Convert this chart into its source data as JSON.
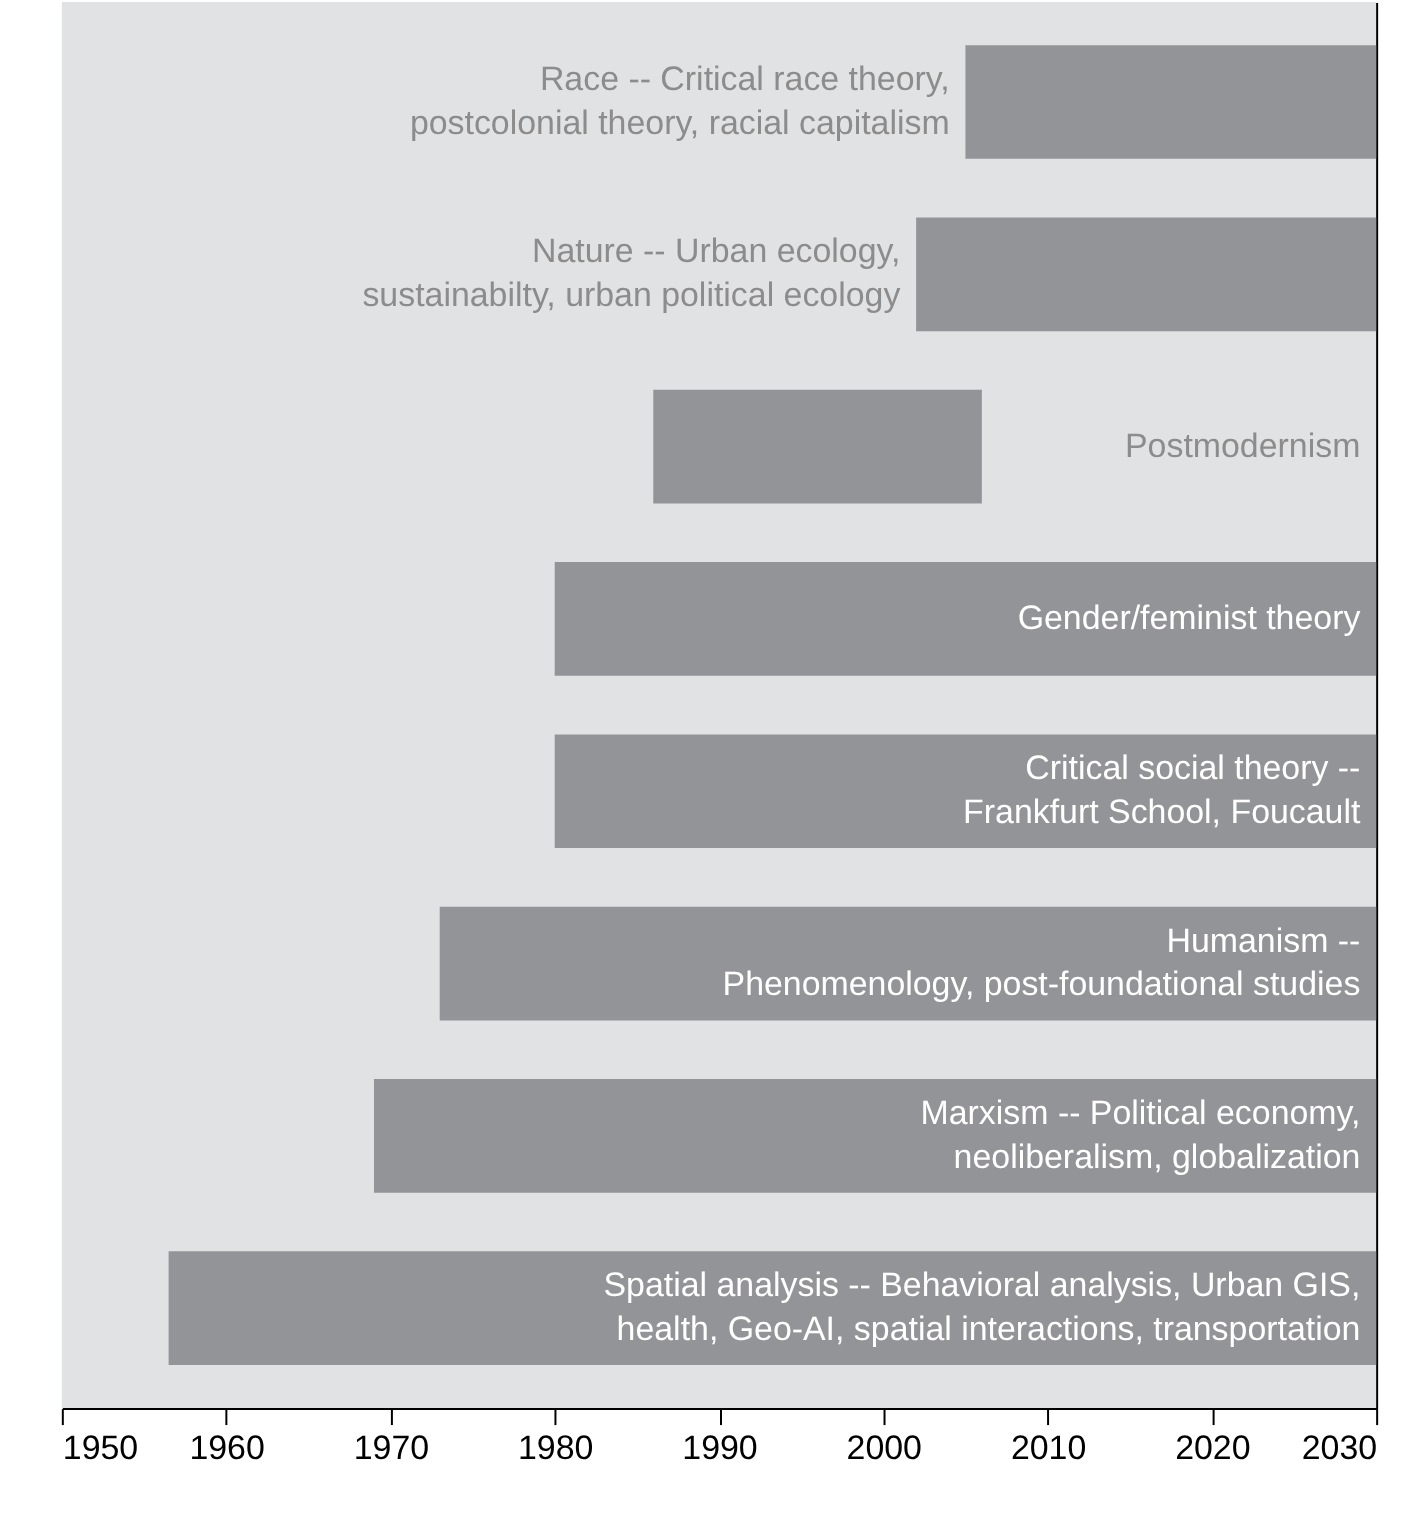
{
  "chart_data": {
    "type": "bar",
    "orientation": "horizontal",
    "categories": [
      "Race -- Critical race theory,\npostcolonial theory, racial capitalism",
      "Nature -- Urban ecology,\nsustainabilty, urban political ecology",
      "Postmodernism",
      "Gender/feminist theory",
      "Critical social theory --\nFrankfurt School, Foucault",
      "Humanism --\nPhenomenology, post-foundational studies",
      "Marxism -- Political economy,\nneoliberalism, globalization",
      "Spatial analysis -- Behavioral analysis, Urban GIS,\nhealth, Geo-AI, spatial interactions, transportation"
    ],
    "base": [
      2005,
      2002,
      1986,
      1980,
      1980,
      1973,
      1969,
      1956.5
    ],
    "values": [
      25,
      28,
      20,
      50,
      50,
      57,
      61,
      73.5
    ],
    "color": "#939497",
    "xlim": [
      1950,
      2030
    ],
    "xticks": [
      1950,
      1960,
      1970,
      1980,
      1990,
      2000,
      2010,
      2020,
      2030
    ],
    "grid": false,
    "tick_labels": "x"
  }
}
